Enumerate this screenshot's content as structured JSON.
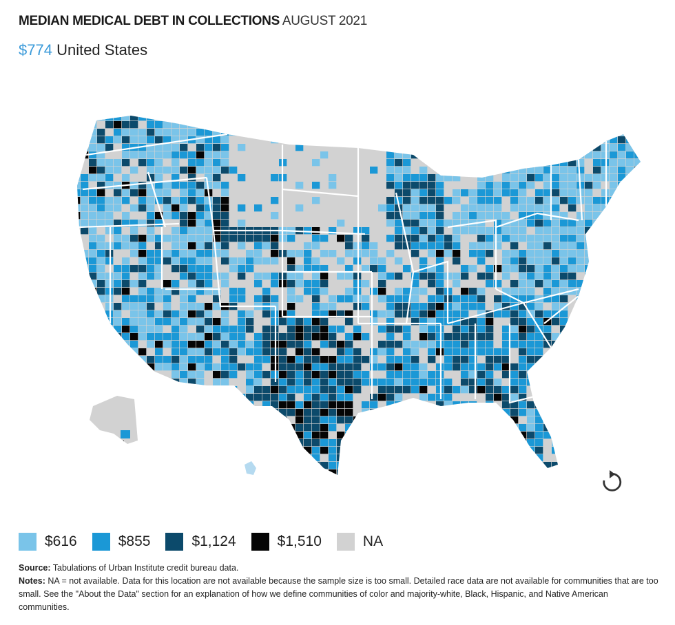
{
  "header": {
    "title_bold": "MEDIAN MEDICAL DEBT IN COLLECTIONS",
    "title_date": "AUGUST 2021",
    "headline_value": "$774",
    "headline_location": "United States"
  },
  "map": {
    "region": "United States counties",
    "reset_icon": "reset-rotate-icon"
  },
  "legend": {
    "items": [
      {
        "label": "$616",
        "color": "#7ac4e9"
      },
      {
        "label": "$855",
        "color": "#1b98d6"
      },
      {
        "label": "$1,124",
        "color": "#0c4a6b"
      },
      {
        "label": "$1,510",
        "color": "#050505"
      },
      {
        "label": "NA",
        "color": "#d2d2d2"
      }
    ]
  },
  "footer": {
    "source_label": "Source:",
    "source_text": "Tabulations of Urban Institute credit bureau data.",
    "notes_label": "Notes:",
    "notes_text": "NA = not available. Data for this location are not available because the sample size is too small. Detailed race data are not available for communities that are too small. See the \"About the Data\" section for an explanation of how we define communities of color and majority-white, Black, Hispanic, and Native American communities."
  }
}
